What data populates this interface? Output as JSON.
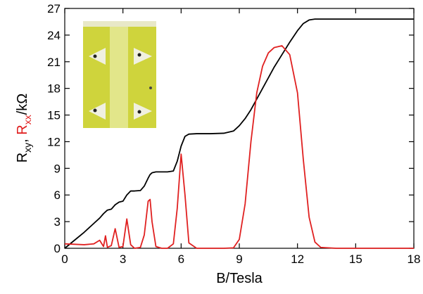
{
  "chart_data": {
    "type": "line",
    "x_label": "B/Tesla",
    "y_label": [
      "R",
      "xy",
      ", ",
      "R",
      "xx",
      "/kΩ"
    ],
    "x": [
      0,
      0.5,
      1,
      1.5,
      1.8,
      2.0,
      2.1,
      2.2,
      2.4,
      2.6,
      2.8,
      3.0,
      3.2,
      3.4,
      3.6,
      3.9,
      4.1,
      4.3,
      4.4,
      4.5,
      4.7,
      5.0,
      5.3,
      5.6,
      5.8,
      6.0,
      6.2,
      6.4,
      6.8,
      7.5,
      8.2,
      8.7,
      9.0,
      9.3,
      9.6,
      9.9,
      10.2,
      10.5,
      10.8,
      11.2,
      11.6,
      12.0,
      12.3,
      12.6,
      12.9,
      13.2,
      14,
      15,
      16,
      17,
      18
    ],
    "series": [
      {
        "color": "#000000",
        "values": [
          0,
          0.9,
          1.8,
          2.8,
          3.4,
          3.9,
          4.1,
          4.3,
          4.4,
          4.9,
          5.2,
          5.3,
          6.0,
          6.45,
          6.45,
          6.5,
          7.0,
          7.9,
          8.3,
          8.5,
          8.6,
          8.6,
          8.6,
          8.7,
          9.8,
          11.5,
          12.6,
          12.85,
          12.9,
          12.9,
          12.95,
          13.2,
          13.8,
          14.6,
          15.6,
          16.8,
          18.0,
          19.2,
          20.4,
          21.8,
          23.2,
          24.5,
          25.3,
          25.7,
          25.8,
          25.8,
          25.8,
          25.8,
          25.8,
          25.8,
          25.8
        ]
      },
      {
        "color": "#e02020",
        "values": [
          0.5,
          0.45,
          0.4,
          0.5,
          0.9,
          0.2,
          1.4,
          0.1,
          0.3,
          2.2,
          0.1,
          0.2,
          3.3,
          0.4,
          0.0,
          0.1,
          1.5,
          5.3,
          5.5,
          3.0,
          0.2,
          0.0,
          0.0,
          0.5,
          4.5,
          10.6,
          6.0,
          0.6,
          0.0,
          0,
          0,
          0.05,
          1.0,
          5.0,
          12.0,
          17.5,
          20.5,
          22.0,
          22.6,
          22.8,
          21.8,
          17.5,
          10.0,
          3.5,
          0.7,
          0.1,
          0,
          0,
          0,
          0,
          0
        ]
      }
    ],
    "xlim": [
      0,
      18
    ],
    "xticks": [
      0,
      3,
      6,
      9,
      12,
      15,
      18
    ],
    "ylim": [
      0,
      27
    ],
    "yticks": [
      0,
      3,
      6,
      9,
      12,
      15,
      18,
      21,
      24,
      27
    ],
    "y_label_colors": [
      "#000000",
      "#000000",
      "#000000",
      "#e02020",
      "#e02020",
      "#000000"
    ]
  }
}
